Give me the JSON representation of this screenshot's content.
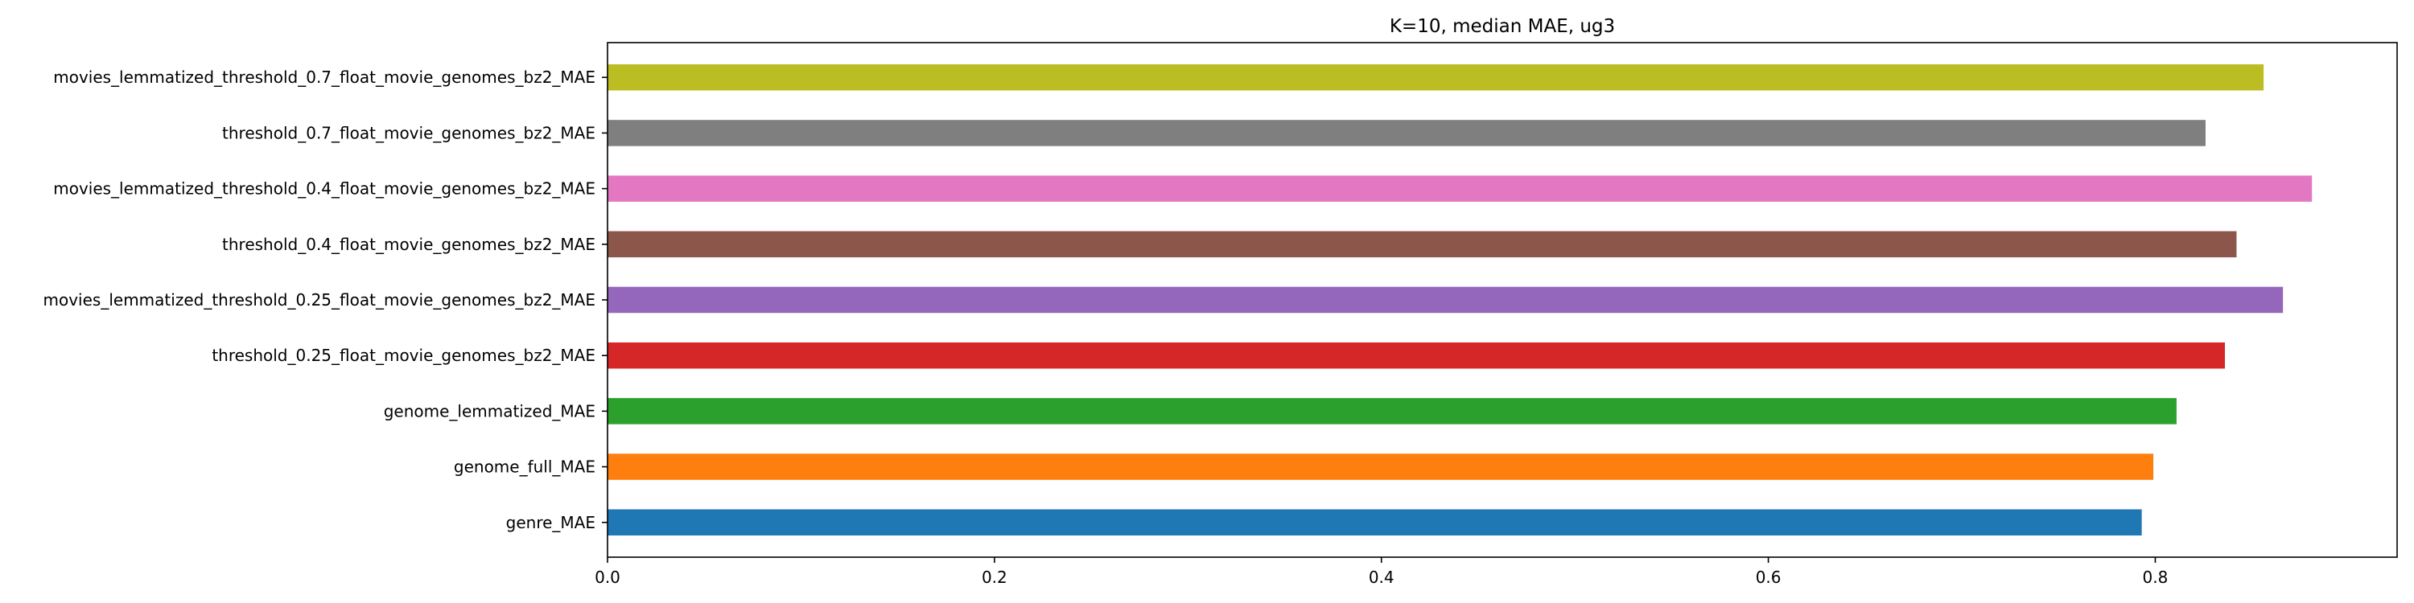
{
  "chart_data": {
    "type": "bar",
    "orientation": "horizontal",
    "title": "K=10, median MAE, ug3",
    "xlabel": "",
    "ylabel": "",
    "xlim": [
      0,
      0.925
    ],
    "xticks": [
      "0.0",
      "0.2",
      "0.4",
      "0.6",
      "0.8"
    ],
    "grid": false,
    "categories": [
      "genre_MAE",
      "genome_full_MAE",
      "genome_lemmatized_MAE",
      "threshold_0.25_float_movie_genomes_bz2_MAE",
      "movies_lemmatized_threshold_0.25_float_movie_genomes_bz2_MAE",
      "threshold_0.4_float_movie_genomes_bz2_MAE",
      "movies_lemmatized_threshold_0.4_float_movie_genomes_bz2_MAE",
      "threshold_0.7_float_movie_genomes_bz2_MAE",
      "movies_lemmatized_threshold_0.7_float_movie_genomes_bz2_MAE"
    ],
    "values": [
      0.793,
      0.799,
      0.811,
      0.836,
      0.866,
      0.842,
      0.881,
      0.826,
      0.856
    ],
    "colors": [
      "#1f77b4",
      "#ff7f0e",
      "#2ca02c",
      "#d62728",
      "#9467bd",
      "#8c564b",
      "#e377c2",
      "#7f7f7f",
      "#bcbd22"
    ]
  }
}
